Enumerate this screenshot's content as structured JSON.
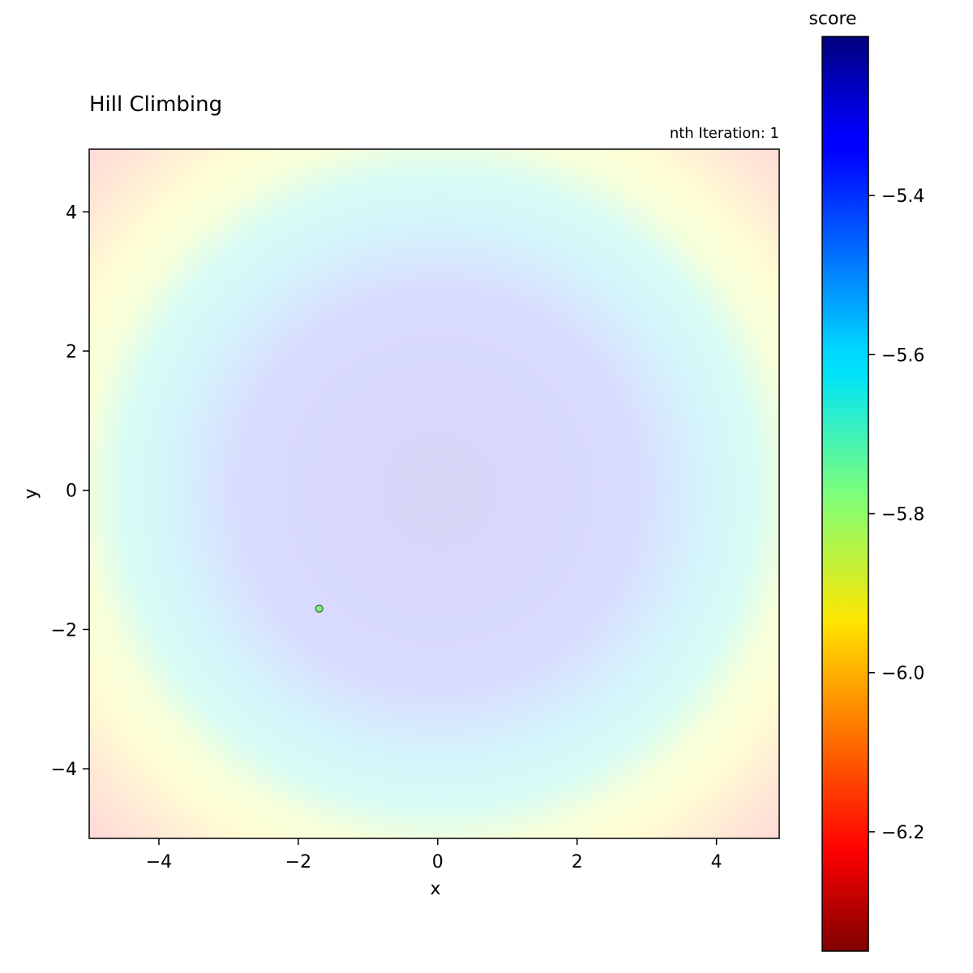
{
  "chart_data": {
    "type": "heatmap",
    "title": "Hill Climbing",
    "subtitle": "nth Iteration: 1",
    "xlabel": "x",
    "ylabel": "y",
    "xlim": [
      -5,
      4.9
    ],
    "ylim": [
      -5,
      4.9
    ],
    "x_ticks": [
      -4,
      -2,
      0,
      2,
      4
    ],
    "y_ticks": [
      -4,
      -2,
      0,
      2,
      4
    ],
    "x_tick_labels": [
      "−4",
      "−2",
      "0",
      "2",
      "4"
    ],
    "y_tick_labels": [
      "−4",
      "−2",
      "0",
      "2",
      "4"
    ],
    "surface": "score = -(x^2 + y^2) (scaled), shown faded with jet colormap",
    "points": [
      {
        "x": -1.7,
        "y": -1.7,
        "color": "#7cf07c"
      }
    ],
    "colorbar": {
      "label": "score",
      "colormap": "jet",
      "range": [
        -6.35,
        -5.2
      ],
      "reversed": true,
      "ticks": [
        -5.4,
        -5.6,
        -5.8,
        -6.0,
        -6.2
      ],
      "tick_labels": [
        "−5.4",
        "−5.6",
        "−5.8",
        "−6.0",
        "−6.2"
      ]
    }
  }
}
